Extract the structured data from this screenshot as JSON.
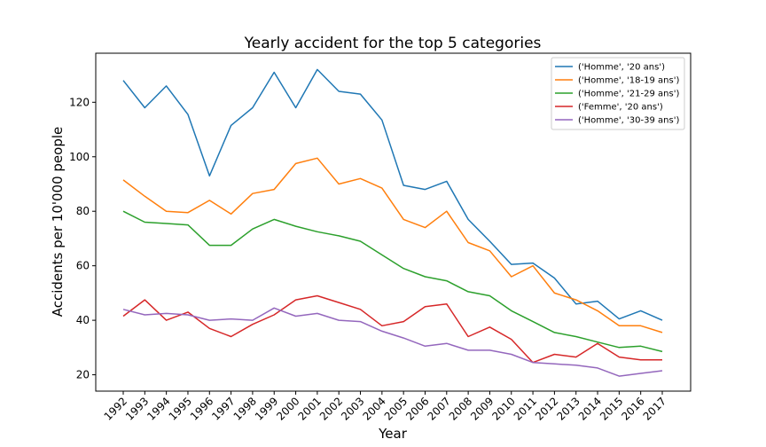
{
  "chart_data": {
    "type": "line",
    "title": "Yearly accident for the top 5 categories",
    "xlabel": "Year",
    "ylabel": "Accidents per 10'000 people",
    "x": [
      "1992",
      "1993",
      "1994",
      "1995",
      "1996",
      "1997",
      "1998",
      "1999",
      "2000",
      "2001",
      "2002",
      "2003",
      "2004",
      "2005",
      "2006",
      "2007",
      "2008",
      "2009",
      "2010",
      "2011",
      "2012",
      "2013",
      "2014",
      "2015",
      "2016",
      "2017"
    ],
    "ylim": [
      14,
      138
    ],
    "yticks": [
      20,
      40,
      60,
      80,
      100,
      120
    ],
    "grid": false,
    "legend_position": "top-right",
    "series": [
      {
        "name": "('Homme', '20 ans')",
        "color": "#1f77b4",
        "values": [
          128,
          118,
          126,
          115.5,
          93,
          111.5,
          118,
          131,
          118,
          132,
          124,
          123,
          113.5,
          89.5,
          88,
          91,
          77,
          69,
          60.5,
          61,
          55.5,
          46,
          47,
          40.5,
          43.5,
          40
        ]
      },
      {
        "name": "('Homme', '18-19 ans')",
        "color": "#ff7f0e",
        "values": [
          91.5,
          85.5,
          80,
          79.5,
          84,
          79,
          86.5,
          88,
          97.5,
          99.5,
          90,
          92,
          88.5,
          77,
          74,
          80,
          68.5,
          65.5,
          56,
          60,
          50,
          47.5,
          43.5,
          38,
          38,
          35.5
        ]
      },
      {
        "name": "('Homme', '21-29 ans')",
        "color": "#2ca02c",
        "values": [
          80,
          76,
          75.5,
          75,
          67.5,
          67.5,
          73.5,
          77,
          74.5,
          72.5,
          71,
          69,
          64,
          59,
          56,
          54.5,
          50.5,
          49,
          43.5,
          39.5,
          35.5,
          34,
          32,
          30,
          30.5,
          28.5
        ]
      },
      {
        "name": "('Femme', '20 ans')",
        "color": "#d62728",
        "values": [
          41.5,
          47.5,
          40,
          43,
          37,
          34,
          38.5,
          42,
          47.5,
          49,
          46.5,
          44,
          38,
          39.5,
          45,
          46,
          34,
          37.5,
          33,
          24.5,
          27.5,
          26.5,
          31.5,
          26.5,
          25.5,
          25.5
        ]
      },
      {
        "name": "('Homme', '30-39 ans')",
        "color": "#9467bd",
        "values": [
          44,
          42,
          42.5,
          42,
          40,
          40.5,
          40,
          44.5,
          41.5,
          42.5,
          40,
          39.5,
          36,
          33.5,
          30.5,
          31.5,
          29,
          29,
          27.5,
          24.5,
          24,
          23.5,
          22.5,
          19.5,
          20.5,
          21.5
        ]
      }
    ]
  }
}
